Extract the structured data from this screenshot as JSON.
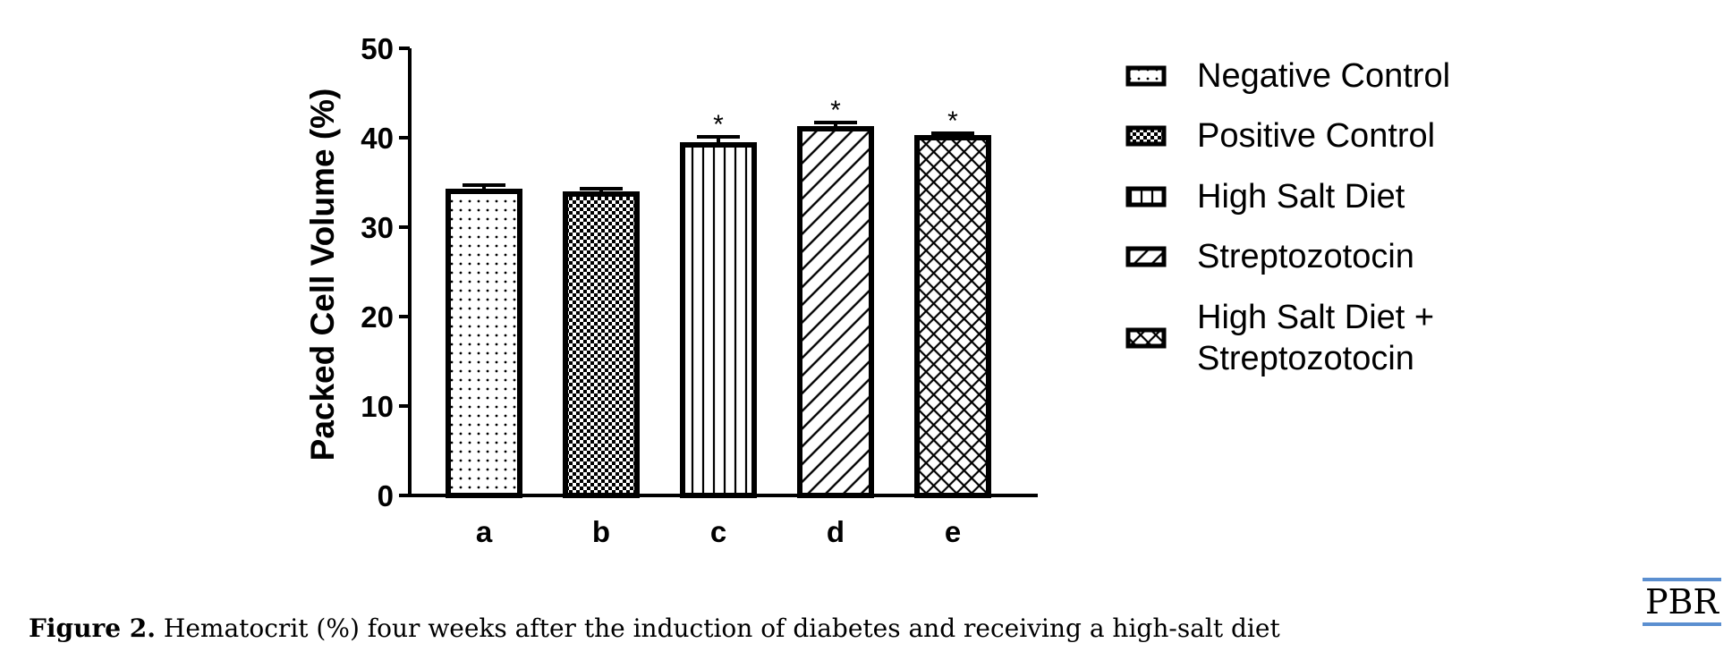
{
  "chart_data": {
    "type": "bar",
    "categories": [
      "a",
      "b",
      "c",
      "d",
      "e"
    ],
    "values": [
      34.0,
      33.7,
      39.2,
      41.0,
      40.0
    ],
    "errors": [
      0.7,
      0.6,
      0.9,
      0.7,
      0.5
    ],
    "significance": [
      "",
      "",
      "*",
      "*",
      "*"
    ],
    "ylabel": "Packed Cell Volume (%)",
    "xlabel": "",
    "ylim": [
      0,
      50
    ],
    "yticks": [
      0,
      10,
      20,
      30,
      40,
      50
    ],
    "grid": false,
    "legend_position": "right",
    "series": [
      {
        "name": "Negative Control",
        "pattern": "dots"
      },
      {
        "name": "Positive Control",
        "pattern": "checker"
      },
      {
        "name": "High Salt Diet",
        "pattern": "vertical-lines"
      },
      {
        "name": "Streptozotocin",
        "pattern": "diagonal-lines"
      },
      {
        "name": "High Salt Diet +\nStreptozotocin",
        "pattern": "crosshatch"
      }
    ],
    "bar_color": "#000000",
    "background_color": "#ffffff"
  },
  "caption": {
    "label": "Figure 2.",
    "text": "Hematocrit (%) four weeks after the induction of diabetes and receiving a high-salt diet"
  },
  "logo": {
    "text": "PBR",
    "accent_color": "#5b8fd0"
  }
}
